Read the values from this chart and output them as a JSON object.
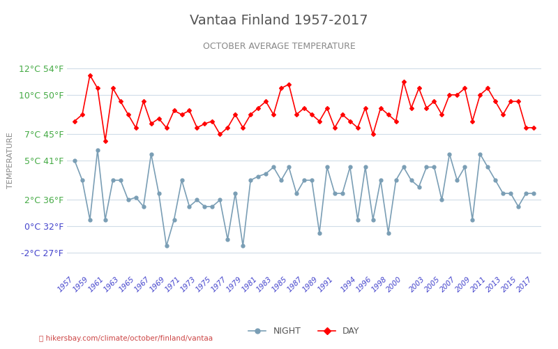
{
  "title": "Vantaa Finland 1957-2017",
  "subtitle": "OCTOBER AVERAGE TEMPERATURE",
  "ylabel": "TEMPERATURE",
  "xlabel_bottom": "hikersbay.com/climate/october/finland/vantaa",
  "years": [
    1957,
    1958,
    1959,
    1960,
    1961,
    1962,
    1963,
    1964,
    1965,
    1966,
    1967,
    1968,
    1969,
    1970,
    1971,
    1972,
    1973,
    1974,
    1975,
    1976,
    1977,
    1978,
    1979,
    1980,
    1981,
    1982,
    1983,
    1984,
    1985,
    1986,
    1987,
    1988,
    1989,
    1990,
    1991,
    1992,
    1993,
    1994,
    1995,
    1996,
    1997,
    1998,
    1999,
    2000,
    2001,
    2002,
    2003,
    2004,
    2005,
    2006,
    2007,
    2008,
    2009,
    2010,
    2011,
    2012,
    2013,
    2014,
    2015,
    2016,
    2017
  ],
  "day": [
    8.0,
    8.5,
    11.5,
    10.5,
    6.5,
    10.5,
    9.5,
    8.5,
    7.5,
    9.5,
    7.8,
    8.2,
    7.5,
    8.8,
    8.5,
    8.8,
    7.5,
    7.8,
    8.0,
    7.0,
    7.5,
    8.5,
    7.5,
    8.5,
    9.0,
    9.5,
    8.5,
    10.5,
    10.8,
    8.5,
    9.0,
    8.5,
    8.0,
    9.0,
    7.5,
    8.5,
    8.0,
    7.5,
    9.0,
    7.0,
    9.0,
    8.5,
    8.0,
    11.0,
    9.0,
    10.5,
    9.0,
    9.5,
    8.5,
    10.0,
    10.0,
    10.5,
    8.0,
    10.0,
    10.5,
    9.5,
    8.5,
    9.5,
    9.5,
    7.5,
    7.5
  ],
  "night": [
    5.0,
    3.5,
    0.5,
    5.8,
    0.5,
    3.5,
    3.5,
    2.0,
    2.2,
    1.5,
    5.5,
    2.5,
    -1.5,
    0.5,
    3.5,
    1.5,
    2.0,
    1.5,
    1.5,
    2.0,
    -1.0,
    2.5,
    -1.5,
    3.5,
    3.8,
    4.0,
    4.5,
    3.5,
    4.5,
    2.5,
    3.5,
    3.5,
    -0.5,
    4.5,
    2.5,
    2.5,
    4.5,
    0.5,
    4.5,
    0.5,
    3.5,
    -0.5,
    3.5,
    4.5,
    3.5,
    3.0,
    4.5,
    4.5,
    2.0,
    5.5,
    3.5,
    4.5,
    0.5,
    5.5,
    4.5,
    3.5,
    2.5,
    2.5,
    1.5,
    2.5,
    2.5
  ],
  "yticks_celsius": [
    -2,
    0,
    2,
    5,
    7,
    10,
    12
  ],
  "yticks_fahrenheit": [
    27,
    32,
    36,
    41,
    45,
    50,
    54
  ],
  "xtick_years": [
    1957,
    1959,
    1961,
    1963,
    1965,
    1967,
    1969,
    1971,
    1973,
    1975,
    1977,
    1979,
    1981,
    1983,
    1985,
    1987,
    1989,
    1991,
    1994,
    1996,
    1998,
    2000,
    2003,
    2005,
    2007,
    2009,
    2011,
    2013,
    2015,
    2017
  ],
  "day_color": "#ff0000",
  "night_color": "#7a9eb5",
  "grid_color": "#d0dce8",
  "bg_color": "#ffffff",
  "title_color": "#555555",
  "subtitle_color": "#888888",
  "tick_color_celsius": "#44aa44",
  "tick_color_fahrenheit": "#44aa44",
  "tick_color_blue": "#4444cc",
  "ylabel_color": "#888888",
  "url_color_green": "#44aa44",
  "url_color_red": "#dd4444"
}
